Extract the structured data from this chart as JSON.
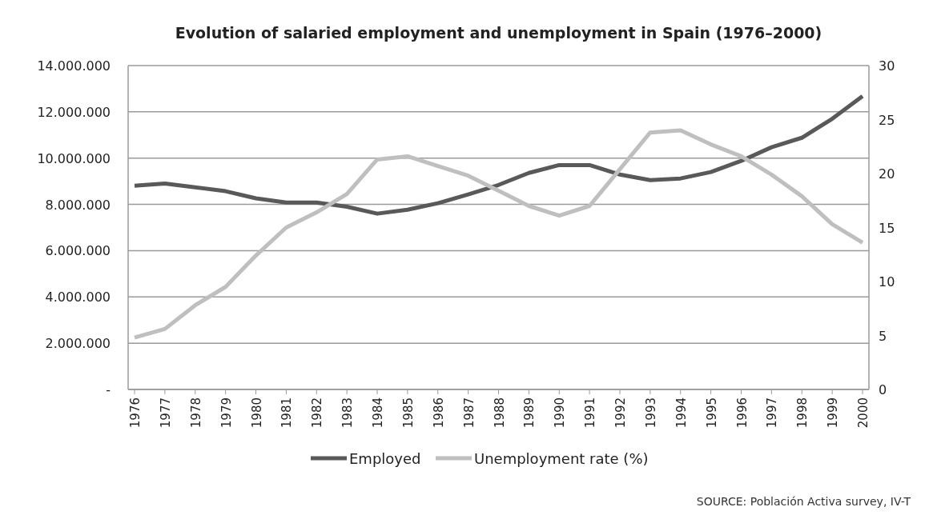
{
  "chart_data": {
    "type": "line",
    "title": "Evolution of salaried employment and unemployment in Spain (1976–2000)",
    "categories": [
      "1976",
      "1977",
      "1978",
      "1979",
      "1980",
      "1981",
      "1982",
      "1983",
      "1984",
      "1985",
      "1986",
      "1987",
      "1988",
      "1989",
      "1990",
      "1991",
      "1992",
      "1993",
      "1994",
      "1995",
      "1996",
      "1997",
      "1998",
      "1999",
      "2000"
    ],
    "series": [
      {
        "name": "Employed",
        "color": "#595959",
        "values": [
          8810000,
          8900000,
          8740000,
          8570000,
          8260000,
          8080000,
          8080000,
          7900000,
          7600000,
          7770000,
          8050000,
          8430000,
          8840000,
          9360000,
          9700000,
          9700000,
          9290000,
          9050000,
          9120000,
          9400000,
          9880000,
          10470000,
          10880000,
          11700000,
          12680000
        ]
      },
      {
        "name": "Unemployment rate (%)",
        "color": "#bfbfbf",
        "axis": "y2",
        "values": [
          4.8,
          5.6,
          7.8,
          9.5,
          12.4,
          15.0,
          16.4,
          18.1,
          21.3,
          21.6,
          20.7,
          19.8,
          18.4,
          17.0,
          16.1,
          17.0,
          20.4,
          23.8,
          24.0,
          22.7,
          21.6,
          19.9,
          17.9,
          15.3,
          13.6
        ]
      }
    ],
    "ylim": [
      0,
      14000000
    ],
    "yticks": [
      {
        "value": 0,
        "label": "-"
      },
      {
        "value": 2000000,
        "label": "2.000.000"
      },
      {
        "value": 4000000,
        "label": "4.000.000"
      },
      {
        "value": 6000000,
        "label": "6.000.000"
      },
      {
        "value": 8000000,
        "label": "8.000.000"
      },
      {
        "value": 10000000,
        "label": "10.000.000"
      },
      {
        "value": 12000000,
        "label": "12.000.000"
      },
      {
        "value": 14000000,
        "label": "14.000.000"
      }
    ],
    "y2lim": [
      0,
      30
    ],
    "y2ticks": [
      0,
      5,
      10,
      15,
      20,
      25,
      30
    ],
    "grid": "y",
    "legend": "bottom",
    "line_style": "solid",
    "annotations": [
      "SOURCE: Población Activa survey, IV-T"
    ]
  }
}
